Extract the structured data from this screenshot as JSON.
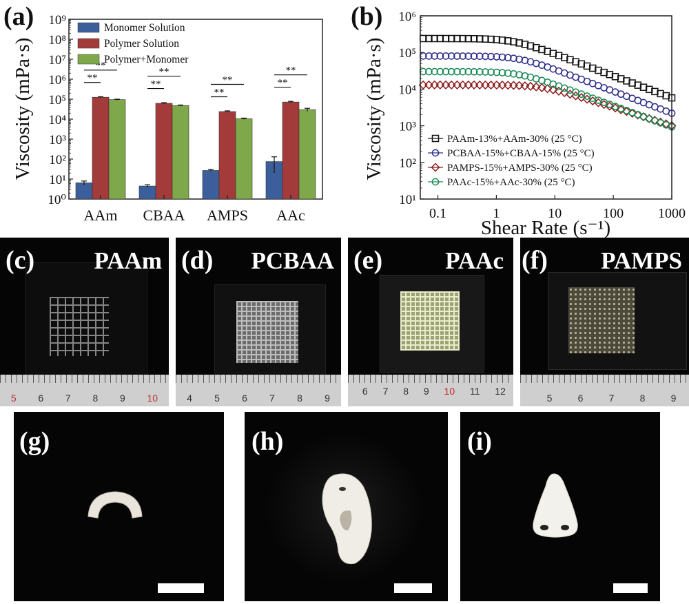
{
  "chart_data": [
    {
      "type": "bar",
      "panel_label": "(a)",
      "categories": [
        "AAm",
        "CBAA",
        "AMPS",
        "AAc"
      ],
      "series": [
        {
          "name": "Monomer Solution",
          "color": "#3c5f9b",
          "values": [
            6.5,
            4.5,
            27,
            75
          ],
          "errors": [
            1.5,
            0.7,
            3,
            55
          ]
        },
        {
          "name": "Polymer Solution",
          "color": "#a33b3b",
          "values": [
            125000,
            62000,
            24000,
            72000
          ],
          "errors": [
            8000,
            5000,
            2000,
            6000
          ]
        },
        {
          "name": "Polymer+Monomer",
          "color": "#7ea84a",
          "values": [
            95000,
            48000,
            10500,
            30000
          ],
          "errors": [
            5000,
            3000,
            800,
            5000
          ]
        }
      ],
      "ylabel": "Viscosity (mPa·s)",
      "yscale": "log",
      "ylim": [
        1,
        1000000000
      ],
      "yticks": [
        "10⁰",
        "10¹",
        "10²",
        "10³",
        "10⁴",
        "10⁵",
        "10⁶",
        "10⁷",
        "10⁸",
        "10⁹"
      ],
      "significance_label": "**",
      "legend_position": "top-left"
    },
    {
      "type": "line",
      "panel_label": "(b)",
      "xlabel": "Shear Rate (s⁻¹)",
      "ylabel": "Viscosity (mPa·s)",
      "xscale": "log",
      "yscale": "log",
      "xlim": [
        0.05,
        1000
      ],
      "ylim": [
        10,
        1000000
      ],
      "xticks": [
        "0.1",
        "1",
        "10",
        "100",
        "1000"
      ],
      "yticks": [
        "10¹",
        "10²",
        "10³",
        "10⁴",
        "10⁵",
        "10⁶"
      ],
      "legend_position": "bottom-left",
      "series": [
        {
          "name": "PAAm-13%+AAm-30% (25 °C)",
          "color": "#111111",
          "marker": "square",
          "eta0": 240000,
          "gamma_c": 2.0,
          "slope": 0.6
        },
        {
          "name": "PCBAA-15%+CBAA-15% (25 °C)",
          "color": "#2d2d8c",
          "marker": "circle",
          "eta0": 80000,
          "gamma_c": 2.5,
          "slope": 0.6
        },
        {
          "name": "PAMPS-15%+AMPS-30% (25 °C)",
          "color": "#8b1c1c",
          "marker": "diamond",
          "eta0": 13000,
          "gamma_c": 6.0,
          "slope": 0.5
        },
        {
          "name": "PAAc-15%+AAc-30% (25 °C)",
          "color": "#1a8a55",
          "marker": "circle",
          "eta0": 30000,
          "gamma_c": 2.5,
          "slope": 0.58
        }
      ]
    }
  ],
  "photos": [
    {
      "label": "(c)",
      "name": "PAAm",
      "ruler": [
        "5",
        "6",
        "7",
        "8",
        "9",
        "10"
      ]
    },
    {
      "label": "(d)",
      "name": "PCBAA",
      "ruler": [
        "4",
        "5",
        "6",
        "7",
        "8",
        "9"
      ]
    },
    {
      "label": "(e)",
      "name": "PAAc",
      "ruler": [
        "6",
        "7",
        "8",
        "9",
        "10",
        "11",
        "12"
      ]
    },
    {
      "label": "(f)",
      "name": "PAMPS",
      "ruler": [
        "5",
        "6",
        "7",
        "8",
        "9"
      ]
    },
    {
      "label": "(g)"
    },
    {
      "label": "(h)"
    },
    {
      "label": "(i)"
    }
  ]
}
